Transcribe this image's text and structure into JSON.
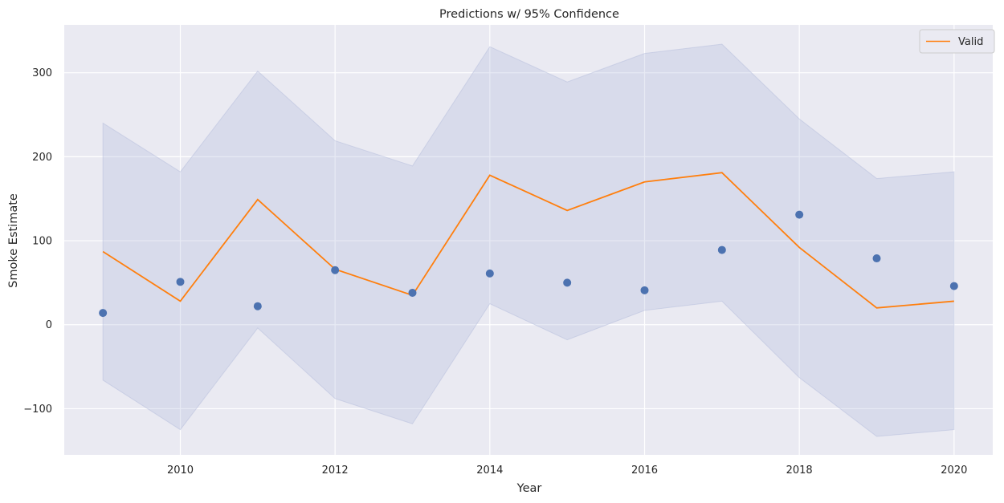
{
  "chart_data": {
    "type": "line",
    "title": "Predictions w/ 95% Confidence",
    "xlabel": "Year",
    "ylabel": "Smoke Estimate",
    "xlim": [
      2008.5,
      2020.5
    ],
    "ylim": [
      -155,
      357
    ],
    "xticks": [
      2010,
      2012,
      2014,
      2016,
      2018,
      2020
    ],
    "yticks": [
      -100,
      0,
      100,
      200,
      300
    ],
    "ytick_labels": [
      "−100",
      "0",
      "100",
      "200",
      "300"
    ],
    "grid": true,
    "legend_position": "top-right",
    "colors": {
      "background": "#eaeaf2",
      "grid": "#ffffff",
      "line": "#ff7f0e",
      "points": "#4c72b0",
      "band": "#b0b9d9"
    },
    "x": [
      2009,
      2010,
      2011,
      2012,
      2013,
      2014,
      2015,
      2016,
      2017,
      2018,
      2019,
      2020
    ],
    "series": [
      {
        "name": "Valid",
        "kind": "line",
        "values": [
          87,
          28,
          149,
          66,
          35,
          178,
          136,
          170,
          181,
          92,
          20,
          28
        ]
      },
      {
        "kind": "scatter",
        "values": [
          14,
          51,
          22,
          65,
          38,
          61,
          50,
          41,
          89,
          131,
          79,
          46
        ]
      },
      {
        "kind": "band",
        "lower": [
          -66,
          -125,
          -4,
          -88,
          -118,
          25,
          -18,
          17,
          28,
          -63,
          -133,
          -125
        ],
        "upper": [
          240,
          182,
          302,
          219,
          189,
          331,
          289,
          323,
          334,
          245,
          174,
          182
        ]
      }
    ],
    "legend": [
      "Valid"
    ]
  }
}
